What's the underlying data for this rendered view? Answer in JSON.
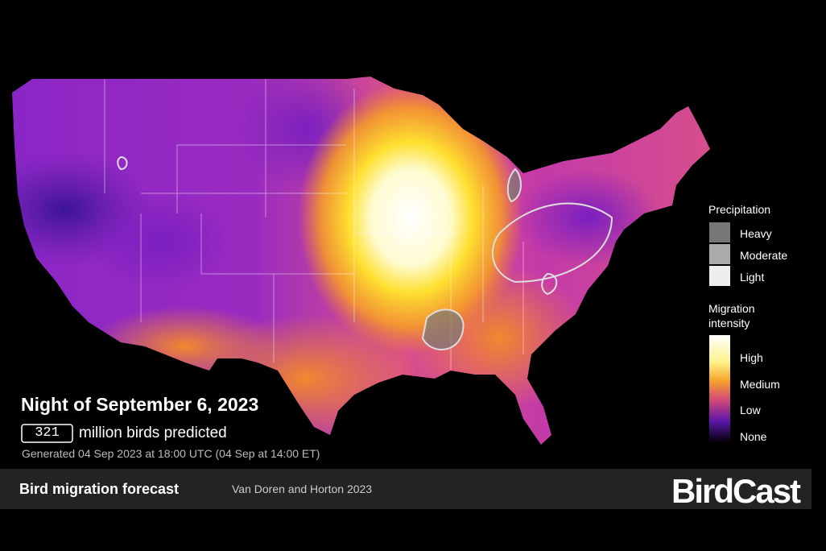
{
  "map": {
    "title": "Night of September 6, 2023",
    "bird_count": 321,
    "count_label": "million birds predicted",
    "generated": "Generated 04 Sep 2023 at 18:00 UTC (04 Sep at 14:00 ET)"
  },
  "legend": {
    "precipitation": {
      "title": "Precipitation",
      "items": [
        "Heavy",
        "Moderate",
        "Light"
      ]
    },
    "migration": {
      "title": "Migration intensity",
      "items": [
        "High",
        "Medium",
        "Low",
        "None"
      ]
    }
  },
  "footer": {
    "title": "Bird migration forecast",
    "credit": "Van Doren and Horton 2023",
    "brand": "BirdCast"
  }
}
